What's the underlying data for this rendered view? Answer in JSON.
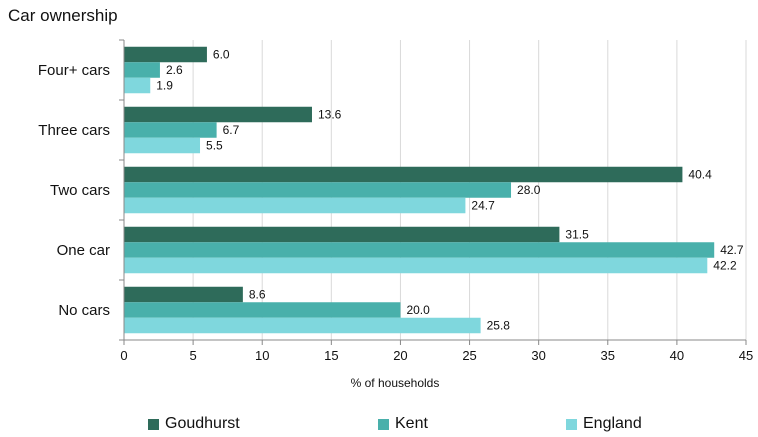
{
  "chart_data": {
    "type": "bar",
    "orientation": "horizontal",
    "title": "Car ownership",
    "xlabel": "% of households",
    "ylabel": "",
    "xlim": [
      0,
      45
    ],
    "x_ticks": [
      0,
      5,
      10,
      15,
      20,
      25,
      30,
      35,
      40,
      45
    ],
    "grid": true,
    "legend_position": "bottom",
    "categories": [
      "Four+ cars",
      "Three cars",
      "Two cars",
      "One car",
      "No cars"
    ],
    "series": [
      {
        "name": "Goudhurst",
        "color": "#2e6b5a",
        "values": [
          6.0,
          13.6,
          40.4,
          31.5,
          8.6
        ],
        "labels": [
          "6.0",
          "13.6",
          "40.4",
          "31.5",
          "8.6"
        ]
      },
      {
        "name": "Kent",
        "color": "#49b0ab",
        "values": [
          2.6,
          6.7,
          28.0,
          42.7,
          20.0
        ],
        "labels": [
          "2.6",
          "6.7",
          "28.0",
          "42.7",
          "20.0"
        ]
      },
      {
        "name": "England",
        "color": "#7fd7dd",
        "values": [
          1.9,
          5.5,
          24.7,
          42.2,
          25.8
        ],
        "labels": [
          "1.9",
          "5.5",
          "24.7",
          "42.2",
          "25.8"
        ]
      }
    ]
  }
}
